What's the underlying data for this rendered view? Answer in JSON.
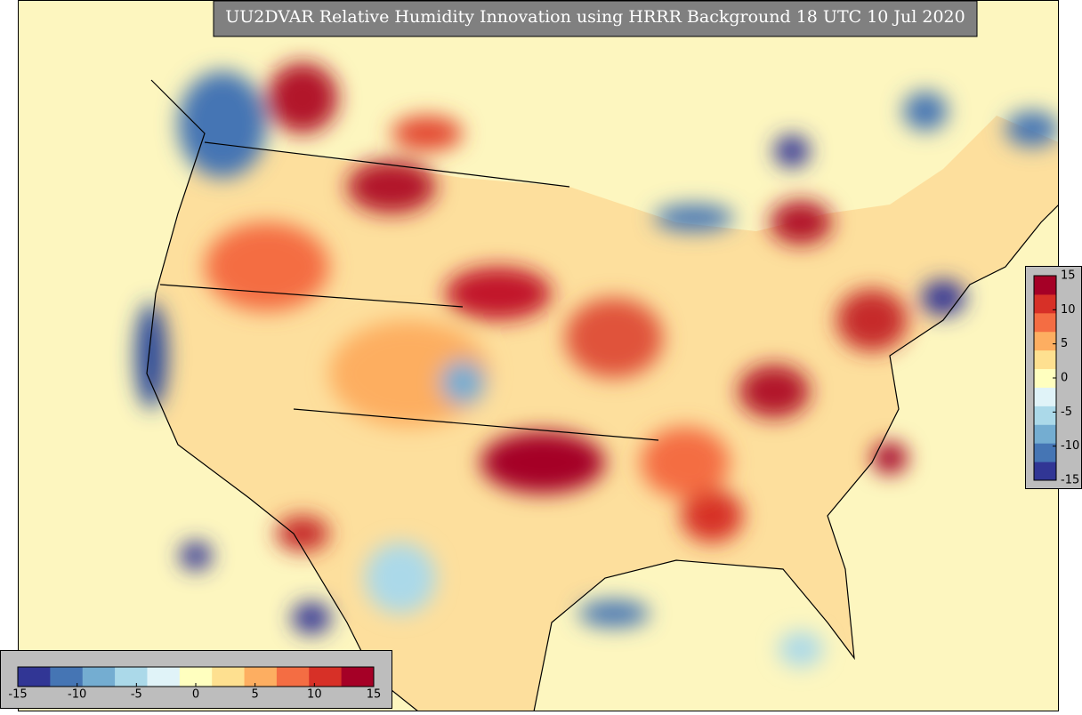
{
  "title": "UU2DVAR Relative Humidity Innovation using HRRR Background 18 UTC 10 Jul 2020",
  "colorbar": {
    "limits": [
      -15,
      15
    ],
    "ticks": [
      -15,
      -10,
      -5,
      0,
      5,
      10,
      15
    ],
    "colors": [
      "#313695",
      "#4575b4",
      "#74add1",
      "#abd9e9",
      "#e0f3f8",
      "#ffffbf",
      "#fee090",
      "#fdae61",
      "#f46d43",
      "#d73027",
      "#a50026"
    ]
  }
}
